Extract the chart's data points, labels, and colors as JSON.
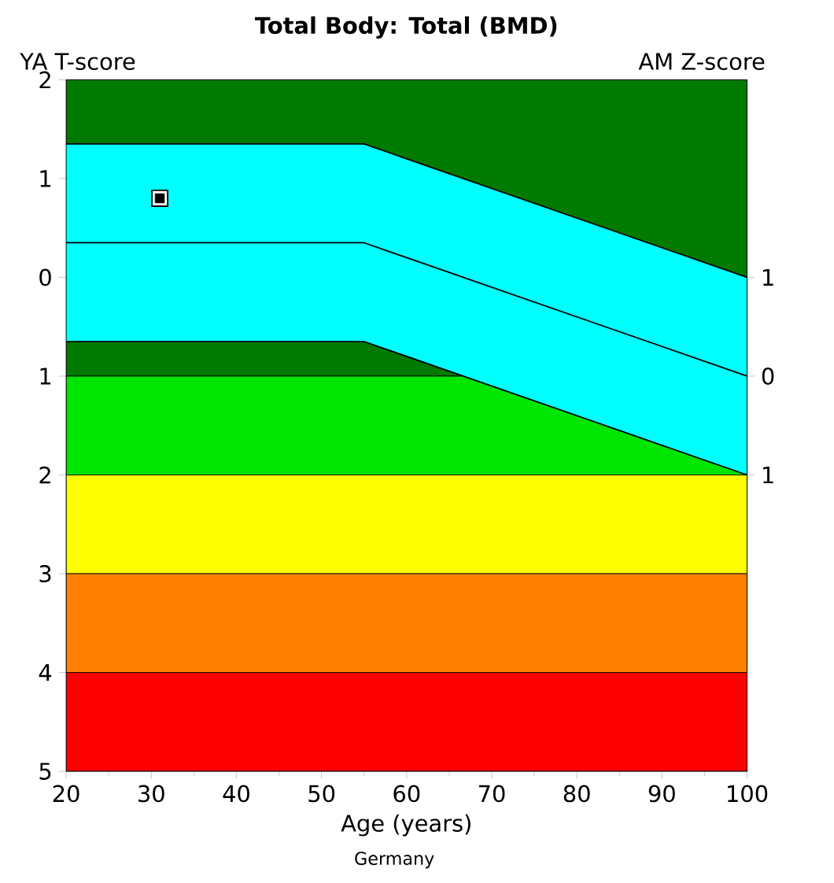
{
  "chart_data": {
    "type": "line",
    "title": "Total Body: Total (BMD)",
    "xlabel": "Age (years)",
    "ylabel": "YA T-score",
    "y2label": "AM Z-score",
    "annotations": [
      "Germany"
    ],
    "xlim": [
      20,
      100
    ],
    "xticks": [
      20,
      30,
      40,
      50,
      60,
      70,
      80,
      90,
      100
    ],
    "ylim": [
      -5,
      2
    ],
    "yticks": [
      2,
      1,
      0,
      {
        "value": -1,
        "label": "1"
      },
      {
        "value": -2,
        "label": "2"
      },
      {
        "value": -3,
        "label": "3"
      },
      {
        "value": -4,
        "label": "4"
      },
      {
        "value": -5,
        "label": "5"
      }
    ],
    "y2lim": [
      -4,
      3
    ],
    "y2ticks": [
      {
        "value": 1,
        "label": "1"
      },
      0,
      {
        "value": -1,
        "label": "1"
      }
    ],
    "bands": [
      {
        "axis": "y",
        "from": -1,
        "to": 2,
        "color": "#007a00"
      },
      {
        "axis": "y",
        "from": -2,
        "to": -1,
        "color": "#00e600"
      },
      {
        "axis": "y",
        "from": -3,
        "to": -2,
        "color": "#ffff00"
      },
      {
        "axis": "y",
        "from": -4,
        "to": -3,
        "color": "#ff8000"
      },
      {
        "axis": "y",
        "from": -5,
        "to": -4,
        "color": "#ff0000"
      }
    ],
    "series": [
      {
        "x": [
          20,
          55,
          100
        ],
        "values": [
          0.35,
          0.35,
          -1
        ],
        "lower": [
          -0.65,
          -0.65,
          -2
        ],
        "upper": [
          1.35,
          1.35,
          0
        ],
        "color": "#000000"
      },
      {
        "x": [
          20,
          55,
          100
        ],
        "values": [
          1.35,
          1.35,
          0
        ],
        "color": "#000000"
      },
      {
        "x": [
          20,
          55,
          100
        ],
        "values": [
          -0.65,
          -0.65,
          -2
        ],
        "color": "#000000"
      },
      {
        "type": "scatter",
        "x": [
          31
        ],
        "values": [
          0.8
        ],
        "color": "#000000",
        "marker": "square"
      }
    ]
  }
}
